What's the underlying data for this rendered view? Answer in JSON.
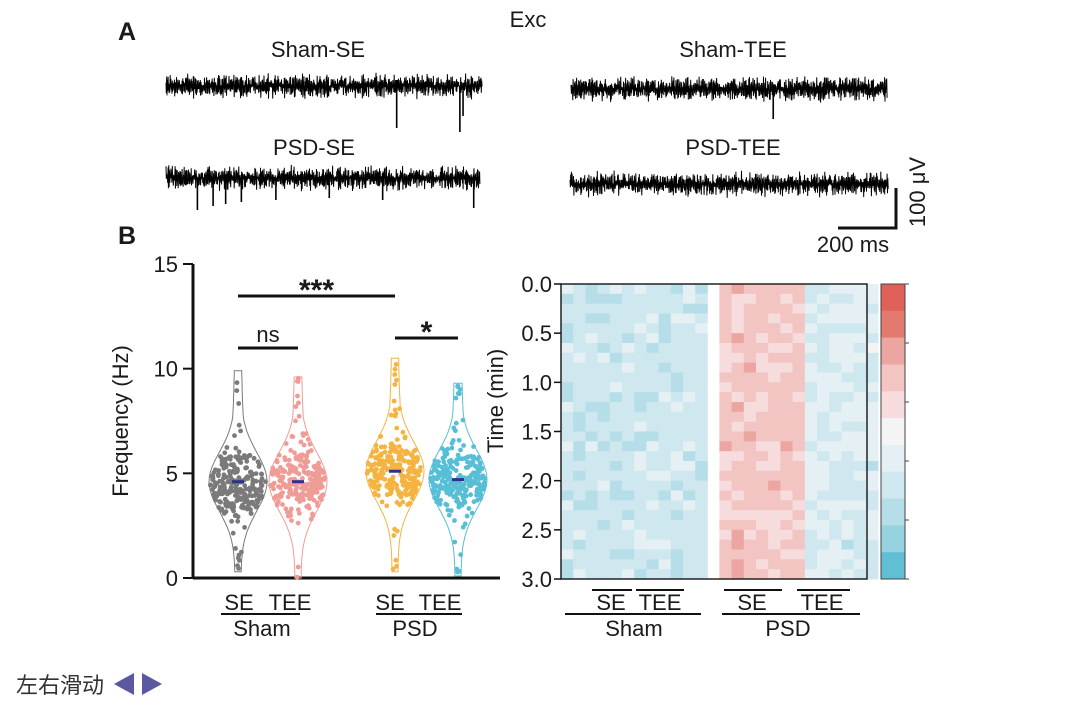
{
  "panel_a": {
    "label": "A",
    "title": "Exc",
    "traces": [
      {
        "name": "Sham-SE",
        "spikes": [
          {
            "at": 0.73,
            "depth": 42
          },
          {
            "at": 0.93,
            "depth": 46
          },
          {
            "at": 0.94,
            "depth": 30
          }
        ]
      },
      {
        "name": "Sham-TEE",
        "spikes": [
          {
            "at": 0.64,
            "depth": 30
          }
        ]
      },
      {
        "name": "PSD-SE",
        "spikes": [
          {
            "at": 0.1,
            "depth": 32
          },
          {
            "at": 0.15,
            "depth": 28
          },
          {
            "at": 0.19,
            "depth": 26
          },
          {
            "at": 0.24,
            "depth": 24
          },
          {
            "at": 0.35,
            "depth": 22
          },
          {
            "at": 0.52,
            "depth": 20
          },
          {
            "at": 0.69,
            "depth": 22
          },
          {
            "at": 0.98,
            "depth": 30
          }
        ]
      },
      {
        "name": "PSD-TEE",
        "spikes": []
      }
    ],
    "scale_bar": {
      "voltage": "100 μV",
      "time": "200 ms"
    }
  },
  "panel_b": {
    "label": "B",
    "violin": {
      "ylabel": "Frequency (Hz)",
      "ylim": [
        0,
        15
      ],
      "yticks": [
        "0",
        "5",
        "10",
        "15"
      ],
      "groups": [
        {
          "name": "SE",
          "group": "Sham",
          "color": "#7a7a7a",
          "median": 4.6,
          "max": 9.9,
          "min": 0.3
        },
        {
          "name": "TEE",
          "group": "Sham",
          "color": "#f09c96",
          "median": 4.6,
          "max": 9.6,
          "min": 0.0
        },
        {
          "name": "SE",
          "group": "PSD",
          "color": "#f5b440",
          "median": 5.1,
          "max": 10.5,
          "min": 0.3
        },
        {
          "name": "TEE",
          "group": "PSD",
          "color": "#56bfd6",
          "median": 4.7,
          "max": 9.3,
          "min": 0.1
        }
      ],
      "group_labels": [
        "Sham",
        "PSD"
      ],
      "significance": [
        {
          "label": "ns",
          "between": [
            0,
            1
          ]
        },
        {
          "label": "*",
          "between": [
            2,
            3
          ]
        },
        {
          "label": "***",
          "between": [
            0,
            2
          ]
        }
      ]
    },
    "heatmap": {
      "ylabel": "Time (min)",
      "yticks": [
        "0.0",
        "0.5",
        "1.0",
        "1.5",
        "2.0",
        "2.5",
        "3.0"
      ],
      "rows": 30,
      "columns": [
        {
          "group": "Sham",
          "condition": "SE",
          "count": 6,
          "bias": -2.2
        },
        {
          "group": "Sham",
          "condition": "TEE",
          "count": 6,
          "bias": -2.0
        },
        {
          "group": "PSD",
          "condition": "SE",
          "count": 7,
          "bias": 1.8
        },
        {
          "group": "PSD",
          "condition": "TEE",
          "count": 6,
          "bias": -1.4
        }
      ],
      "condition_labels": [
        "SE",
        "TEE",
        "SE",
        "TEE"
      ],
      "group_labels": [
        "Sham",
        "PSD"
      ],
      "colorbar": [
        "#e0605a",
        "#e37a70",
        "#eba6a2",
        "#f2c4c2",
        "#f6dcdc",
        "#f4f4f4",
        "#e4f0f3",
        "#cfe7ee",
        "#b6dee8",
        "#97d2e0",
        "#61bfd4"
      ]
    }
  },
  "footer": {
    "scroll_hint": "左右滑动"
  }
}
